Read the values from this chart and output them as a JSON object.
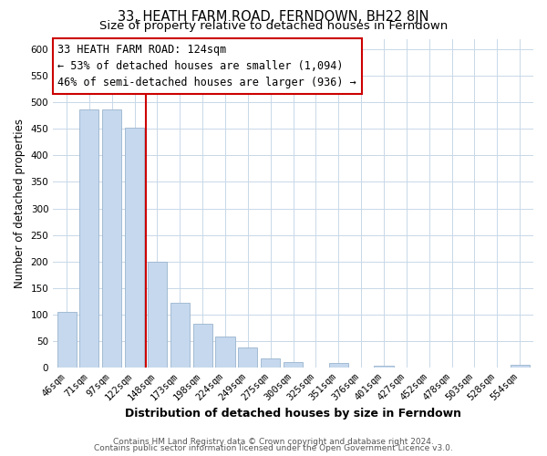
{
  "title": "33, HEATH FARM ROAD, FERNDOWN, BH22 8JN",
  "subtitle": "Size of property relative to detached houses in Ferndown",
  "xlabel": "Distribution of detached houses by size in Ferndown",
  "ylabel": "Number of detached properties",
  "categories": [
    "46sqm",
    "71sqm",
    "97sqm",
    "122sqm",
    "148sqm",
    "173sqm",
    "198sqm",
    "224sqm",
    "249sqm",
    "275sqm",
    "300sqm",
    "325sqm",
    "351sqm",
    "376sqm",
    "401sqm",
    "427sqm",
    "452sqm",
    "478sqm",
    "503sqm",
    "528sqm",
    "554sqm"
  ],
  "values": [
    105,
    487,
    487,
    452,
    200,
    122,
    82,
    58,
    38,
    17,
    10,
    0,
    8,
    0,
    3,
    0,
    0,
    0,
    0,
    0,
    5
  ],
  "bar_color": "#c5d8ed",
  "bar_edge_color": "#9ab5ce",
  "vline_x": 3.5,
  "vline_color": "#cc0000",
  "annotation_line1": "33 HEATH FARM ROAD: 124sqm",
  "annotation_line2": "← 53% of detached houses are smaller (1,094)",
  "annotation_line3": "46% of semi-detached houses are larger (936) →",
  "annotation_box_color": "#ffffff",
  "annotation_box_edge_color": "#cc0000",
  "ylim": [
    0,
    620
  ],
  "yticks": [
    0,
    50,
    100,
    150,
    200,
    250,
    300,
    350,
    400,
    450,
    500,
    550,
    600
  ],
  "footer_line1": "Contains HM Land Registry data © Crown copyright and database right 2024.",
  "footer_line2": "Contains public sector information licensed under the Open Government Licence v3.0.",
  "title_fontsize": 10.5,
  "subtitle_fontsize": 9.5,
  "xlabel_fontsize": 9,
  "ylabel_fontsize": 8.5,
  "tick_fontsize": 7.5,
  "annotation_fontsize": 8.5,
  "footer_fontsize": 6.5,
  "bg_color": "#ffffff",
  "grid_color": "#c8d8e8"
}
